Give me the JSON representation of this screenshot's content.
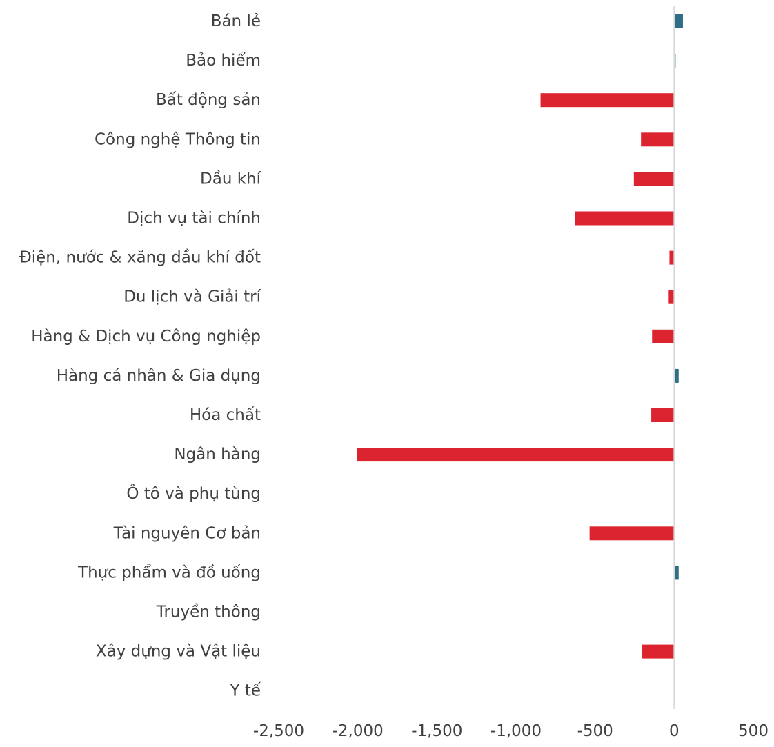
{
  "chart_data": {
    "type": "bar",
    "orientation": "horizontal",
    "categories": [
      "Bán lẻ",
      "Bảo hiểm",
      "Bất động sản",
      "Công nghệ Thông tin",
      "Dầu khí",
      "Dịch vụ tài chính",
      "Điện, nước & xăng dầu khí đốt",
      "Du lịch và Giải trí",
      "Hàng & Dịch vụ Công nghiệp",
      "Hàng cá nhân & Gia dụng",
      "Hóa chất",
      "Ngân hàng",
      "Ô tô và phụ tùng",
      "Tài nguyên Cơ bản",
      "Thực phẩm và đồ uống",
      "Truyền thông",
      "Xây dựng và Vật liệu",
      "Y tế"
    ],
    "values": [
      55,
      8,
      -845,
      -210,
      -255,
      -625,
      -30,
      -35,
      -140,
      28,
      -145,
      -2005,
      0,
      -535,
      28,
      0,
      -205,
      0
    ],
    "xlim": [
      -2500,
      500
    ],
    "xticks": [
      -2500,
      -2000,
      -1500,
      -1000,
      -500,
      0,
      500
    ],
    "xtick_labels": [
      "-2,500",
      "-2,000",
      "-1,500",
      "-1,000",
      "-500",
      "0",
      "500"
    ],
    "colors": {
      "positive": "#2e6e87",
      "negative": "#dc2430",
      "zero_line": "#d9d9d9",
      "text": "#404040"
    },
    "grid": false,
    "legend": "none",
    "title": "",
    "xlabel": "",
    "ylabel": ""
  }
}
